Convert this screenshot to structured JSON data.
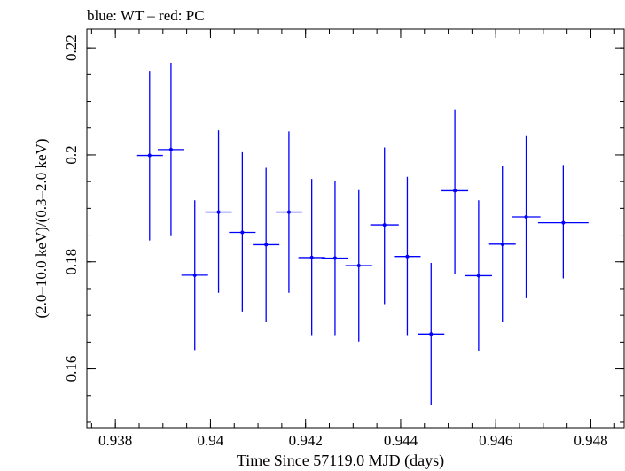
{
  "chart_data": {
    "type": "scatter",
    "title": "blue: WT – red: PC",
    "xlabel": "Time Since 57119.0 MJD (days)",
    "ylabel": "(2.0–10.0 keV)/(0.3–2.0 keV)",
    "xlim": [
      0.9374,
      0.9487
    ],
    "ylim": [
      0.149,
      0.2235
    ],
    "x_ticks": [
      0.938,
      0.94,
      0.942,
      0.944,
      0.946,
      0.948
    ],
    "x_tick_labels": [
      "0.938",
      "0.94",
      "0.942",
      "0.944",
      "0.946",
      "0.948"
    ],
    "y_ticks": [
      0.16,
      0.18,
      0.2,
      0.22
    ],
    "y_tick_labels": [
      "0.16",
      "0.18",
      "0.2",
      "0.22"
    ],
    "x_minor_step": 0.0005,
    "y_minor_step": 0.005,
    "grid": false,
    "colors": {
      "series": "#0000ff",
      "axes": "#000000"
    },
    "series": [
      {
        "color": "#0000ff",
        "points": [
          {
            "x": 0.93872,
            "xerr": 0.00028,
            "y": 0.1999,
            "yerr_low": 0.0159,
            "yerr_high": 0.0158
          },
          {
            "x": 0.93917,
            "xerr": 0.00028,
            "y": 0.201,
            "yerr_low": 0.0162,
            "yerr_high": 0.0162
          },
          {
            "x": 0.93967,
            "xerr": 0.00028,
            "y": 0.1775,
            "yerr_low": 0.014,
            "yerr_high": 0.014
          },
          {
            "x": 0.94017,
            "xerr": 0.00028,
            "y": 0.1893,
            "yerr_low": 0.0151,
            "yerr_high": 0.0153
          },
          {
            "x": 0.94067,
            "xerr": 0.00028,
            "y": 0.1855,
            "yerr_low": 0.0148,
            "yerr_high": 0.015
          },
          {
            "x": 0.94117,
            "xerr": 0.00028,
            "y": 0.1832,
            "yerr_low": 0.0145,
            "yerr_high": 0.0144
          },
          {
            "x": 0.94165,
            "xerr": 0.00028,
            "y": 0.1893,
            "yerr_low": 0.0151,
            "yerr_high": 0.0151
          },
          {
            "x": 0.94213,
            "xerr": 0.00028,
            "y": 0.1808,
            "yerr_low": 0.0145,
            "yerr_high": 0.0147
          },
          {
            "x": 0.94262,
            "xerr": 0.00028,
            "y": 0.1807,
            "yerr_low": 0.0144,
            "yerr_high": 0.0144
          },
          {
            "x": 0.94312,
            "xerr": 0.00028,
            "y": 0.1793,
            "yerr_low": 0.0142,
            "yerr_high": 0.0141
          },
          {
            "x": 0.94366,
            "xerr": 0.0003,
            "y": 0.1869,
            "yerr_low": 0.0148,
            "yerr_high": 0.0145
          },
          {
            "x": 0.94414,
            "xerr": 0.00028,
            "y": 0.181,
            "yerr_low": 0.0147,
            "yerr_high": 0.0149
          },
          {
            "x": 0.94464,
            "xerr": 0.00028,
            "y": 0.1665,
            "yerr_low": 0.0133,
            "yerr_high": 0.0133
          },
          {
            "x": 0.94514,
            "xerr": 0.00028,
            "y": 0.1933,
            "yerr_low": 0.0155,
            "yerr_high": 0.0152
          },
          {
            "x": 0.94564,
            "xerr": 0.00028,
            "y": 0.1774,
            "yerr_low": 0.014,
            "yerr_high": 0.0141
          },
          {
            "x": 0.94614,
            "xerr": 0.00028,
            "y": 0.1833,
            "yerr_low": 0.0146,
            "yerr_high": 0.0146
          },
          {
            "x": 0.94664,
            "xerr": 0.0003,
            "y": 0.1884,
            "yerr_low": 0.0152,
            "yerr_high": 0.0151
          },
          {
            "x": 0.94742,
            "xerr": 0.00053,
            "y": 0.1873,
            "yerr_low": 0.0104,
            "yerr_high": 0.0108
          }
        ]
      }
    ]
  }
}
